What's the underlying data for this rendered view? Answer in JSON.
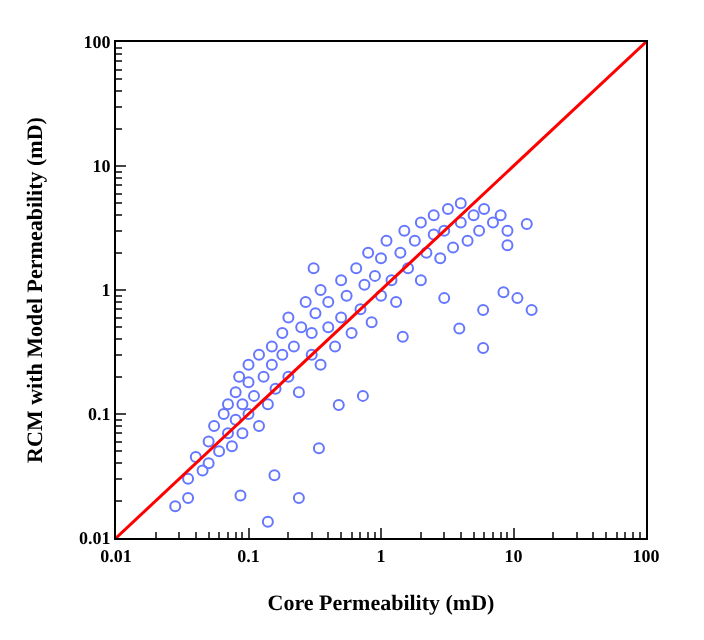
{
  "chart_data": {
    "type": "scatter",
    "xlabel": "Core Permeability (mD)",
    "ylabel": "RCM with Model Permeability (mD)",
    "log": "xy",
    "marker": "circle",
    "xlim": [
      0.01,
      100
    ],
    "ylim": [
      0.01,
      100
    ],
    "xticks": [
      0.01,
      0.1,
      1,
      10,
      100
    ],
    "yticks": [
      0.01,
      0.1,
      1,
      10,
      100
    ],
    "series": [
      {
        "color": "#6677ff",
        "x": [
          0.035,
          0.04,
          0.045,
          0.05,
          0.05,
          0.055,
          0.06,
          0.065,
          0.07,
          0.07,
          0.075,
          0.08,
          0.08,
          0.085,
          0.09,
          0.09,
          0.1,
          0.1,
          0.1,
          0.11,
          0.12,
          0.12,
          0.13,
          0.14,
          0.15,
          0.15,
          0.16,
          0.18,
          0.18,
          0.2,
          0.2,
          0.22,
          0.24,
          0.25,
          0.27,
          0.3,
          0.3,
          0.32,
          0.35,
          0.35,
          0.4,
          0.4,
          0.45,
          0.5,
          0.5,
          0.55,
          0.6,
          0.65,
          0.7,
          0.75,
          0.8,
          0.85,
          0.9,
          1.0,
          1.0,
          1.1,
          1.2,
          1.3,
          1.4,
          1.5,
          1.6,
          1.8,
          2.0,
          2.0,
          2.2,
          2.5,
          2.5,
          2.8,
          3.0,
          3.2,
          3.5,
          4.0,
          4.0,
          4.5,
          5.0,
          5.5,
          6.0,
          7.0,
          8.0,
          9.0,
          0.31,
          12.6,
          13.7,
          5.9,
          10.7,
          8.4,
          3.0,
          9.0,
          0.14,
          0.24,
          0.087,
          0.157,
          0.028,
          0.035,
          0.34,
          0.73,
          0.48,
          3.9,
          5.9,
          1.46
        ],
        "values": [
          0.03,
          0.045,
          0.035,
          0.06,
          0.04,
          0.08,
          0.05,
          0.1,
          0.07,
          0.12,
          0.055,
          0.09,
          0.15,
          0.2,
          0.07,
          0.12,
          0.1,
          0.18,
          0.25,
          0.14,
          0.08,
          0.3,
          0.2,
          0.12,
          0.35,
          0.25,
          0.16,
          0.45,
          0.3,
          0.2,
          0.6,
          0.35,
          0.15,
          0.5,
          0.8,
          0.3,
          0.45,
          0.65,
          1.0,
          0.25,
          0.5,
          0.8,
          0.35,
          1.2,
          0.6,
          0.9,
          0.45,
          1.5,
          0.7,
          1.1,
          2.0,
          0.55,
          1.3,
          0.9,
          1.8,
          2.5,
          1.2,
          0.8,
          2.0,
          3.0,
          1.5,
          2.5,
          1.2,
          3.5,
          2.0,
          4.0,
          2.8,
          1.8,
          3.0,
          4.5,
          2.2,
          3.5,
          5.0,
          2.5,
          4.0,
          3.0,
          4.5,
          3.5,
          4.0,
          3.0,
          1.5,
          3.4,
          0.69,
          0.69,
          0.86,
          0.96,
          0.86,
          2.3,
          0.0135,
          0.021,
          0.022,
          0.032,
          0.018,
          0.021,
          0.053,
          0.14,
          0.118,
          0.49,
          0.34,
          0.42
        ]
      },
      {
        "type": "line",
        "marker": "none",
        "color": "#ff0000",
        "x": [
          0.01,
          100
        ],
        "values": [
          0.01,
          100
        ]
      }
    ]
  }
}
